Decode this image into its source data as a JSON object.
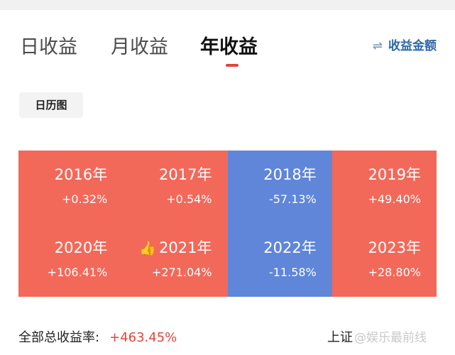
{
  "tabs": [
    {
      "label": "日收益"
    },
    {
      "label": "月收益"
    },
    {
      "label": "年收益"
    }
  ],
  "switch": {
    "icon": "swap-arrows-icon",
    "icon_glyph": "⇌",
    "label": "收益金额"
  },
  "calendar_button": {
    "label": "日历图"
  },
  "colors": {
    "gain": "#f2695a",
    "loss": "#5f86d9",
    "accent": "#e0463a",
    "link": "#2f67a8"
  },
  "years": [
    {
      "year": "2016年",
      "return": "+0.32%",
      "trend": "gain"
    },
    {
      "year": "2017年",
      "return": "+0.54%",
      "trend": "gain"
    },
    {
      "year": "2018年",
      "return": "-57.13%",
      "trend": "loss"
    },
    {
      "year": "2019年",
      "return": "+49.40%",
      "trend": "gain"
    },
    {
      "year": "2020年",
      "return": "+106.41%",
      "trend": "gain"
    },
    {
      "year": "2021年",
      "return": "+271.04%",
      "trend": "gain",
      "icon": "thumbs-up-icon"
    },
    {
      "year": "2022年",
      "return": "-11.58%",
      "trend": "loss"
    },
    {
      "year": "2023年",
      "return": "+28.80%",
      "trend": "gain"
    }
  ],
  "summary": {
    "label": "全部总收益率:",
    "value": "+463.45%"
  },
  "footer_right": {
    "label": "上证",
    "watermark": "@娱乐最前线"
  }
}
